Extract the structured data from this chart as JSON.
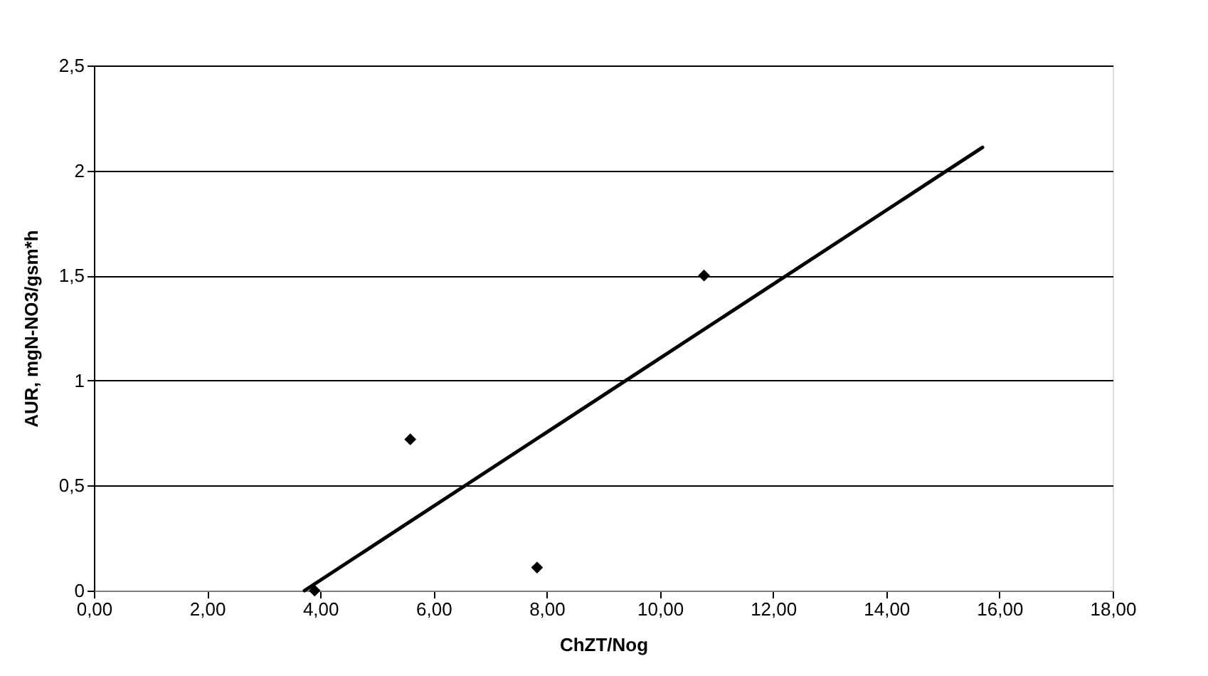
{
  "chart_data": {
    "type": "scatter",
    "xlabel": "ChZT/Nog",
    "ylabel": "AUR, mgN-NO3/gsm*h",
    "xlim": [
      0,
      18
    ],
    "xticks": [
      {
        "value": 0,
        "label": "0,00"
      },
      {
        "value": 2,
        "label": "2,00"
      },
      {
        "value": 4,
        "label": "4,00"
      },
      {
        "value": 6,
        "label": "6,00"
      },
      {
        "value": 8,
        "label": "8,00"
      },
      {
        "value": 10,
        "label": "10,00"
      },
      {
        "value": 12,
        "label": "12,00"
      },
      {
        "value": 14,
        "label": "14,00"
      },
      {
        "value": 16,
        "label": "16,00"
      },
      {
        "value": 18,
        "label": "18,00"
      }
    ],
    "ylim": [
      0,
      2.5
    ],
    "yticks": [
      0,
      {
        "value": 0.5,
        "label": "0,5"
      },
      1,
      {
        "value": 1.5,
        "label": "1,5"
      },
      2,
      {
        "value": 2.5,
        "label": "2,5"
      }
    ],
    "grid": "y",
    "marker": "diamond",
    "series": [
      {
        "color": "#000000",
        "x": [
          3.9,
          5.59,
          7.83,
          10.78
        ],
        "values": [
          0,
          0.72,
          0.11,
          1.5
        ]
      },
      {
        "type": "line",
        "color": "#000000",
        "marker": "none",
        "line_style": "solid",
        "x": [
          3.72,
          15.7
        ],
        "values": [
          0,
          2.11
        ]
      }
    ]
  }
}
